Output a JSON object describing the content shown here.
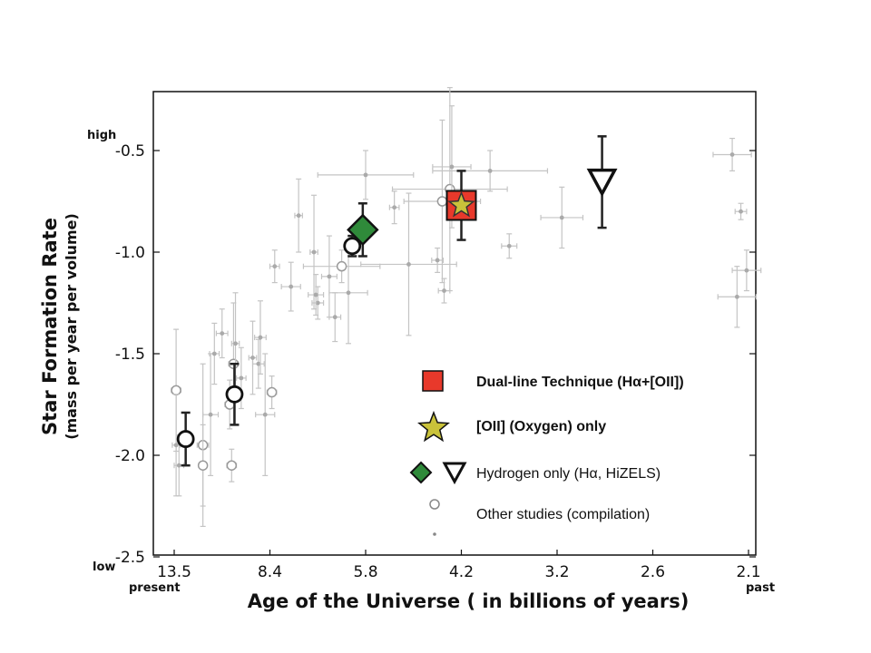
{
  "chart_data": {
    "type": "scatter",
    "title": "",
    "xlabel": "Age of the Universe ( in billions of years)",
    "ylabel": "Star Formation Rate",
    "ylabel_sub": "(mass per year per volume)",
    "x_axis_scale": "redshift-like (age labels)",
    "x_ticks": [
      "13.5",
      "8.4",
      "5.8",
      "4.2",
      "3.2",
      "2.6",
      "2.1"
    ],
    "x_range_index": [
      0,
      6
    ],
    "y_ticks": [
      "-0.5",
      "-1.0",
      "-1.5",
      "-2.0",
      "-2.5"
    ],
    "ylim": [
      -2.5,
      -0.2
    ],
    "corner_labels": {
      "high": "high",
      "low": "low",
      "present": "present",
      "past": "past"
    },
    "grid": false,
    "legend_position": "lower-right inside",
    "legend": [
      {
        "marker": "red-square",
        "label": "Dual-line Technique (Hα+[OII])",
        "bold": true
      },
      {
        "marker": "yellow-star",
        "label": "[OII] (Oxygen) only",
        "bold": true
      },
      {
        "marker": "green-diamond+open-triangle",
        "label": "Hydrogen only (Hα, HiZELS)",
        "bold": false
      },
      {
        "marker": "open-circle",
        "label": "Other studies (compilation)",
        "bold": false
      }
    ],
    "series": [
      {
        "name": "Dual-line Technique (Hα+[OII])",
        "color": "#e8392b",
        "points": [
          {
            "x": 3.0,
            "y": -0.77,
            "yerr_low": 0.17,
            "yerr_high": 0.17
          }
        ]
      },
      {
        "name": "[OII] (Oxygen) only",
        "color": "#c9c23a",
        "points": [
          {
            "x": 3.0,
            "y": -0.77,
            "yerr_low": 0.0,
            "yerr_high": 0.0
          }
        ]
      },
      {
        "name": "Hydrogen only (Hα, HiZELS) - diamond",
        "color": "#2f8a3a",
        "points": [
          {
            "x": 1.97,
            "y": -0.89,
            "yerr_low": 0.13,
            "yerr_high": 0.13
          }
        ]
      },
      {
        "name": "Hydrogen only (Hα, HiZELS) - triangle",
        "color": "#ffffff",
        "points": [
          {
            "x": 4.47,
            "y": -0.65,
            "yerr_low": 0.23,
            "yerr_high": 0.22
          }
        ]
      },
      {
        "name": "HiZELS circles",
        "color": "#ffffff",
        "points": [
          {
            "x": 0.12,
            "y": -1.92,
            "yerr_low": 0.13,
            "yerr_high": 0.13
          },
          {
            "x": 0.63,
            "y": -1.7,
            "yerr_low": 0.15,
            "yerr_high": 0.15
          },
          {
            "x": 1.86,
            "y": -0.97,
            "yerr_low": 0.05,
            "yerr_high": 0.05
          }
        ]
      },
      {
        "name": "Other studies (compilation)",
        "color": "#b4b4b4",
        "points": [
          {
            "x": 0.02,
            "y": -1.68,
            "xerr": 0.05,
            "yerr": 0.3,
            "open": true
          },
          {
            "x": 0.02,
            "y": -1.95,
            "xerr": 0.04,
            "yerr": 0.25,
            "open": false
          },
          {
            "x": 0.05,
            "y": -2.05,
            "xerr": 0.05,
            "yerr": 0.15,
            "open": false
          },
          {
            "x": 0.3,
            "y": -1.95,
            "xerr": 0.06,
            "yerr": 0.4,
            "open": true
          },
          {
            "x": 0.3,
            "y": -2.05,
            "xerr": 0.04,
            "yerr": 0.2,
            "open": true
          },
          {
            "x": 0.38,
            "y": -1.8,
            "xerr": 0.08,
            "yerr": 0.3,
            "open": false
          },
          {
            "x": 0.42,
            "y": -1.5,
            "xerr": 0.05,
            "yerr": 0.15,
            "open": false
          },
          {
            "x": 0.5,
            "y": -1.4,
            "xerr": 0.06,
            "yerr": 0.12,
            "open": false
          },
          {
            "x": 0.58,
            "y": -1.75,
            "xerr": 0.05,
            "yerr": 0.12,
            "open": true
          },
          {
            "x": 0.6,
            "y": -2.05,
            "xerr": 0.05,
            "yerr": 0.08,
            "open": true
          },
          {
            "x": 0.62,
            "y": -1.55,
            "xerr": 0.05,
            "yerr": 0.3,
            "open": true
          },
          {
            "x": 0.64,
            "y": -1.45,
            "xerr": 0.04,
            "yerr": 0.25,
            "open": false
          },
          {
            "x": 0.7,
            "y": -1.62,
            "xerr": 0.05,
            "yerr": 0.15,
            "open": false
          },
          {
            "x": 0.82,
            "y": -1.52,
            "xerr": 0.04,
            "yerr": 0.18,
            "open": false
          },
          {
            "x": 0.88,
            "y": -1.55,
            "xerr": 0.06,
            "yerr": 0.12,
            "open": false
          },
          {
            "x": 0.9,
            "y": -1.42,
            "xerr": 0.06,
            "yerr": 0.18,
            "open": false
          },
          {
            "x": 1.02,
            "y": -1.69,
            "xerr": 0.05,
            "yerr": 0.08,
            "open": true
          },
          {
            "x": 0.95,
            "y": -1.8,
            "xerr": 0.1,
            "yerr": 0.3,
            "open": false
          },
          {
            "x": 1.05,
            "y": -1.07,
            "xerr": 0.05,
            "yerr": 0.08,
            "open": false
          },
          {
            "x": 1.22,
            "y": -1.17,
            "xerr": 0.1,
            "yerr": 0.12,
            "open": false
          },
          {
            "x": 1.3,
            "y": -0.82,
            "xerr": 0.04,
            "yerr": 0.18,
            "open": false
          },
          {
            "x": 1.46,
            "y": -1.0,
            "xerr": 0.04,
            "yerr": 0.28,
            "open": false
          },
          {
            "x": 1.5,
            "y": -1.25,
            "xerr": 0.06,
            "yerr": 0.08,
            "open": false
          },
          {
            "x": 1.48,
            "y": -1.21,
            "xerr": 0.08,
            "yerr": 0.1,
            "open": false
          },
          {
            "x": 1.62,
            "y": -1.12,
            "xerr": 0.08,
            "yerr": 0.2,
            "open": false
          },
          {
            "x": 1.68,
            "y": -1.32,
            "xerr": 0.06,
            "yerr": 0.12,
            "open": false
          },
          {
            "x": 1.75,
            "y": -1.07,
            "xerr": 0.4,
            "yerr": 0.08,
            "open": true
          },
          {
            "x": 1.82,
            "y": -1.2,
            "xerr": 0.2,
            "yerr": 0.25,
            "open": false
          },
          {
            "x": 2.0,
            "y": -0.62,
            "xerr": 0.5,
            "yerr": 0.12,
            "open": false
          },
          {
            "x": 2.3,
            "y": -0.78,
            "xerr": 0.05,
            "yerr": 0.08,
            "open": false
          },
          {
            "x": 2.45,
            "y": -1.06,
            "xerr": 0.5,
            "yerr": 0.35,
            "open": false
          },
          {
            "x": 2.8,
            "y": -0.75,
            "xerr": 0.4,
            "yerr": 0.4,
            "open": true
          },
          {
            "x": 2.88,
            "y": -0.69,
            "xerr": 0.6,
            "yerr": 0.5,
            "open": true
          },
          {
            "x": 2.75,
            "y": -1.04,
            "xerr": 0.06,
            "yerr": 0.06,
            "open": false
          },
          {
            "x": 2.82,
            "y": -1.19,
            "xerr": 0.06,
            "yerr": 0.06,
            "open": false
          },
          {
            "x": 2.9,
            "y": -0.58,
            "xerr": 0.2,
            "yerr": 0.3,
            "open": false
          },
          {
            "x": 3.5,
            "y": -0.97,
            "xerr": 0.08,
            "yerr": 0.06,
            "open": false
          },
          {
            "x": 3.3,
            "y": -0.6,
            "xerr": 0.6,
            "yerr": 0.1,
            "open": false
          },
          {
            "x": 4.05,
            "y": -0.83,
            "xerr": 0.22,
            "yerr": 0.15,
            "open": false
          },
          {
            "x": 5.83,
            "y": -0.52,
            "xerr": 0.2,
            "yerr": 0.08,
            "open": false
          },
          {
            "x": 5.88,
            "y": -1.22,
            "xerr": 0.2,
            "yerr": 0.15,
            "open": false
          },
          {
            "x": 5.92,
            "y": -0.8,
            "xerr": 0.06,
            "yerr": 0.04,
            "open": false
          },
          {
            "x": 5.98,
            "y": -1.09,
            "xerr": 0.15,
            "yerr": 0.1,
            "open": false
          }
        ]
      }
    ]
  }
}
